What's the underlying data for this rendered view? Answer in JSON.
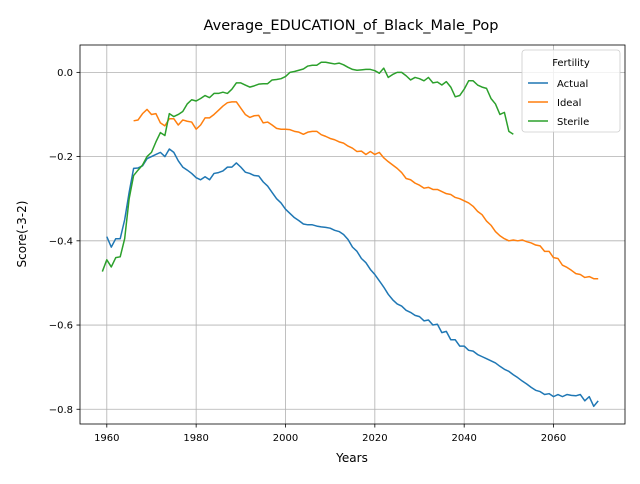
{
  "chart_data": {
    "type": "line",
    "title": "Average_EDUCATION_of_Black_Male_Pop",
    "xlabel": "Years",
    "ylabel": "Score(-3-2)",
    "xlim": [
      1954,
      2076
    ],
    "ylim": [
      -0.835,
      0.065
    ],
    "xticks": [
      1960,
      1980,
      2000,
      2020,
      2040,
      2060
    ],
    "yticks": [
      0.0,
      -0.2,
      -0.4,
      -0.6,
      -0.8
    ],
    "ytick_labels": [
      "0.0",
      "−0.2",
      "−0.4",
      "−0.6",
      "−0.8"
    ],
    "grid": true,
    "legend": {
      "title": "Fertility",
      "placement": "upper right"
    },
    "series": [
      {
        "name": "Actual",
        "color": "#1f77b4",
        "points": [
          [
            1960,
            -0.39
          ],
          [
            1961,
            -0.415
          ],
          [
            1962,
            -0.395
          ],
          [
            1963,
            -0.395
          ],
          [
            1964,
            -0.35
          ],
          [
            1965,
            -0.285
          ],
          [
            1966,
            -0.228
          ],
          [
            1967,
            -0.227
          ],
          [
            1968,
            -0.222
          ],
          [
            1969,
            -0.205
          ],
          [
            1970,
            -0.2
          ],
          [
            1971,
            -0.195
          ],
          [
            1972,
            -0.19
          ],
          [
            1973,
            -0.2
          ],
          [
            1974,
            -0.182
          ],
          [
            1975,
            -0.19
          ],
          [
            1976,
            -0.21
          ],
          [
            1977,
            -0.225
          ],
          [
            1978,
            -0.232
          ],
          [
            1979,
            -0.24
          ],
          [
            1980,
            -0.25
          ],
          [
            1981,
            -0.255
          ],
          [
            1982,
            -0.248
          ],
          [
            1983,
            -0.255
          ],
          [
            1984,
            -0.24
          ],
          [
            1985,
            -0.238
          ],
          [
            1986,
            -0.234
          ],
          [
            1987,
            -0.225
          ],
          [
            1988,
            -0.225
          ],
          [
            1989,
            -0.215
          ],
          [
            1990,
            -0.225
          ],
          [
            1991,
            -0.237
          ],
          [
            1992,
            -0.24
          ],
          [
            1993,
            -0.245
          ],
          [
            1994,
            -0.246
          ],
          [
            1995,
            -0.26
          ],
          [
            1996,
            -0.27
          ],
          [
            1997,
            -0.285
          ],
          [
            1998,
            -0.3
          ],
          [
            1999,
            -0.31
          ],
          [
            2000,
            -0.325
          ],
          [
            2001,
            -0.335
          ],
          [
            2002,
            -0.345
          ],
          [
            2003,
            -0.352
          ],
          [
            2004,
            -0.36
          ],
          [
            2005,
            -0.362
          ],
          [
            2006,
            -0.362
          ],
          [
            2007,
            -0.365
          ],
          [
            2008,
            -0.367
          ],
          [
            2009,
            -0.368
          ],
          [
            2010,
            -0.37
          ],
          [
            2011,
            -0.375
          ],
          [
            2012,
            -0.378
          ],
          [
            2013,
            -0.385
          ],
          [
            2014,
            -0.397
          ],
          [
            2015,
            -0.415
          ],
          [
            2016,
            -0.425
          ],
          [
            2017,
            -0.442
          ],
          [
            2018,
            -0.452
          ],
          [
            2019,
            -0.468
          ],
          [
            2020,
            -0.48
          ],
          [
            2021,
            -0.495
          ],
          [
            2022,
            -0.51
          ],
          [
            2023,
            -0.527
          ],
          [
            2024,
            -0.54
          ],
          [
            2025,
            -0.55
          ],
          [
            2026,
            -0.555
          ],
          [
            2027,
            -0.565
          ],
          [
            2028,
            -0.57
          ],
          [
            2029,
            -0.577
          ],
          [
            2030,
            -0.58
          ],
          [
            2031,
            -0.59
          ],
          [
            2032,
            -0.588
          ],
          [
            2033,
            -0.6
          ],
          [
            2034,
            -0.598
          ],
          [
            2035,
            -0.618
          ],
          [
            2036,
            -0.615
          ],
          [
            2037,
            -0.635
          ],
          [
            2038,
            -0.635
          ],
          [
            2039,
            -0.65
          ],
          [
            2040,
            -0.65
          ],
          [
            2041,
            -0.66
          ],
          [
            2042,
            -0.662
          ],
          [
            2043,
            -0.67
          ],
          [
            2044,
            -0.675
          ],
          [
            2045,
            -0.68
          ],
          [
            2046,
            -0.685
          ],
          [
            2047,
            -0.69
          ],
          [
            2048,
            -0.698
          ],
          [
            2049,
            -0.705
          ],
          [
            2050,
            -0.71
          ],
          [
            2051,
            -0.718
          ],
          [
            2052,
            -0.725
          ],
          [
            2053,
            -0.733
          ],
          [
            2054,
            -0.74
          ],
          [
            2055,
            -0.748
          ],
          [
            2056,
            -0.755
          ],
          [
            2057,
            -0.758
          ],
          [
            2058,
            -0.765
          ],
          [
            2059,
            -0.763
          ],
          [
            2060,
            -0.77
          ],
          [
            2061,
            -0.765
          ],
          [
            2062,
            -0.77
          ],
          [
            2063,
            -0.765
          ],
          [
            2064,
            -0.767
          ],
          [
            2065,
            -0.768
          ],
          [
            2066,
            -0.765
          ],
          [
            2067,
            -0.78
          ],
          [
            2068,
            -0.77
          ],
          [
            2069,
            -0.793
          ],
          [
            2070,
            -0.78
          ]
        ]
      },
      {
        "name": "Ideal",
        "color": "#ff7f0e",
        "points": [
          [
            1966,
            -0.115
          ],
          [
            1967,
            -0.113
          ],
          [
            1968,
            -0.098
          ],
          [
            1969,
            -0.088
          ],
          [
            1970,
            -0.1
          ],
          [
            1971,
            -0.098
          ],
          [
            1972,
            -0.12
          ],
          [
            1973,
            -0.127
          ],
          [
            1974,
            -0.11
          ],
          [
            1975,
            -0.11
          ],
          [
            1976,
            -0.125
          ],
          [
            1977,
            -0.113
          ],
          [
            1978,
            -0.116
          ],
          [
            1979,
            -0.118
          ],
          [
            1980,
            -0.135
          ],
          [
            1981,
            -0.125
          ],
          [
            1982,
            -0.108
          ],
          [
            1983,
            -0.108
          ],
          [
            1984,
            -0.1
          ],
          [
            1985,
            -0.09
          ],
          [
            1986,
            -0.08
          ],
          [
            1987,
            -0.072
          ],
          [
            1988,
            -0.07
          ],
          [
            1989,
            -0.07
          ],
          [
            1990,
            -0.085
          ],
          [
            1991,
            -0.1
          ],
          [
            1992,
            -0.107
          ],
          [
            1993,
            -0.103
          ],
          [
            1994,
            -0.102
          ],
          [
            1995,
            -0.12
          ],
          [
            1996,
            -0.118
          ],
          [
            1997,
            -0.125
          ],
          [
            1998,
            -0.133
          ],
          [
            1999,
            -0.135
          ],
          [
            2000,
            -0.135
          ],
          [
            2001,
            -0.136
          ],
          [
            2002,
            -0.14
          ],
          [
            2003,
            -0.142
          ],
          [
            2004,
            -0.147
          ],
          [
            2005,
            -0.142
          ],
          [
            2006,
            -0.14
          ],
          [
            2007,
            -0.14
          ],
          [
            2008,
            -0.148
          ],
          [
            2009,
            -0.152
          ],
          [
            2010,
            -0.157
          ],
          [
            2011,
            -0.16
          ],
          [
            2012,
            -0.165
          ],
          [
            2013,
            -0.168
          ],
          [
            2014,
            -0.175
          ],
          [
            2015,
            -0.18
          ],
          [
            2016,
            -0.188
          ],
          [
            2017,
            -0.187
          ],
          [
            2018,
            -0.195
          ],
          [
            2019,
            -0.188
          ],
          [
            2020,
            -0.195
          ],
          [
            2021,
            -0.19
          ],
          [
            2022,
            -0.203
          ],
          [
            2023,
            -0.212
          ],
          [
            2024,
            -0.22
          ],
          [
            2025,
            -0.228
          ],
          [
            2026,
            -0.238
          ],
          [
            2027,
            -0.252
          ],
          [
            2028,
            -0.255
          ],
          [
            2029,
            -0.263
          ],
          [
            2030,
            -0.268
          ],
          [
            2031,
            -0.275
          ],
          [
            2032,
            -0.273
          ],
          [
            2033,
            -0.278
          ],
          [
            2034,
            -0.278
          ],
          [
            2035,
            -0.283
          ],
          [
            2036,
            -0.288
          ],
          [
            2037,
            -0.29
          ],
          [
            2038,
            -0.297
          ],
          [
            2039,
            -0.3
          ],
          [
            2040,
            -0.305
          ],
          [
            2041,
            -0.31
          ],
          [
            2042,
            -0.318
          ],
          [
            2043,
            -0.33
          ],
          [
            2044,
            -0.338
          ],
          [
            2045,
            -0.353
          ],
          [
            2046,
            -0.363
          ],
          [
            2047,
            -0.378
          ],
          [
            2048,
            -0.388
          ],
          [
            2049,
            -0.395
          ],
          [
            2050,
            -0.4
          ],
          [
            2051,
            -0.398
          ],
          [
            2052,
            -0.4
          ],
          [
            2053,
            -0.398
          ],
          [
            2054,
            -0.402
          ],
          [
            2055,
            -0.405
          ],
          [
            2056,
            -0.41
          ],
          [
            2057,
            -0.412
          ],
          [
            2058,
            -0.425
          ],
          [
            2059,
            -0.425
          ],
          [
            2060,
            -0.44
          ],
          [
            2061,
            -0.442
          ],
          [
            2062,
            -0.458
          ],
          [
            2063,
            -0.463
          ],
          [
            2064,
            -0.47
          ],
          [
            2065,
            -0.478
          ],
          [
            2066,
            -0.48
          ],
          [
            2067,
            -0.487
          ],
          [
            2068,
            -0.485
          ],
          [
            2069,
            -0.49
          ],
          [
            2070,
            -0.49
          ]
        ]
      },
      {
        "name": "Sterile",
        "color": "#2ca02c",
        "points": [
          [
            1959,
            -0.473
          ],
          [
            1960,
            -0.445
          ],
          [
            1961,
            -0.462
          ],
          [
            1962,
            -0.44
          ],
          [
            1963,
            -0.438
          ],
          [
            1964,
            -0.395
          ],
          [
            1965,
            -0.3
          ],
          [
            1966,
            -0.245
          ],
          [
            1967,
            -0.232
          ],
          [
            1968,
            -0.22
          ],
          [
            1969,
            -0.2
          ],
          [
            1970,
            -0.19
          ],
          [
            1971,
            -0.165
          ],
          [
            1972,
            -0.143
          ],
          [
            1973,
            -0.15
          ],
          [
            1974,
            -0.098
          ],
          [
            1975,
            -0.105
          ],
          [
            1976,
            -0.1
          ],
          [
            1977,
            -0.093
          ],
          [
            1978,
            -0.075
          ],
          [
            1979,
            -0.065
          ],
          [
            1980,
            -0.068
          ],
          [
            1981,
            -0.062
          ],
          [
            1982,
            -0.055
          ],
          [
            1983,
            -0.06
          ],
          [
            1984,
            -0.05
          ],
          [
            1985,
            -0.05
          ],
          [
            1986,
            -0.047
          ],
          [
            1987,
            -0.05
          ],
          [
            1988,
            -0.04
          ],
          [
            1989,
            -0.025
          ],
          [
            1990,
            -0.025
          ],
          [
            1991,
            -0.03
          ],
          [
            1992,
            -0.035
          ],
          [
            1993,
            -0.032
          ],
          [
            1994,
            -0.028
          ],
          [
            1995,
            -0.027
          ],
          [
            1996,
            -0.027
          ],
          [
            1997,
            -0.018
          ],
          [
            1998,
            -0.017
          ],
          [
            1999,
            -0.015
          ],
          [
            2000,
            -0.01
          ],
          [
            2001,
            0.0
          ],
          [
            2002,
            0.002
          ],
          [
            2003,
            0.005
          ],
          [
            2004,
            0.008
          ],
          [
            2005,
            0.015
          ],
          [
            2006,
            0.017
          ],
          [
            2007,
            0.017
          ],
          [
            2008,
            0.024
          ],
          [
            2009,
            0.024
          ],
          [
            2010,
            0.022
          ],
          [
            2011,
            0.02
          ],
          [
            2012,
            0.022
          ],
          [
            2013,
            0.018
          ],
          [
            2014,
            0.012
          ],
          [
            2015,
            0.007
          ],
          [
            2016,
            0.005
          ],
          [
            2017,
            0.006
          ],
          [
            2018,
            0.007
          ],
          [
            2019,
            0.007
          ],
          [
            2020,
            0.004
          ],
          [
            2021,
            -0.002
          ],
          [
            2022,
            0.01
          ],
          [
            2023,
            -0.012
          ],
          [
            2024,
            -0.005
          ],
          [
            2025,
            0.0
          ],
          [
            2026,
            0.0
          ],
          [
            2027,
            -0.008
          ],
          [
            2028,
            -0.018
          ],
          [
            2029,
            -0.012
          ],
          [
            2030,
            -0.015
          ],
          [
            2031,
            -0.02
          ],
          [
            2032,
            -0.012
          ],
          [
            2033,
            -0.025
          ],
          [
            2034,
            -0.023
          ],
          [
            2035,
            -0.03
          ],
          [
            2036,
            -0.022
          ],
          [
            2037,
            -0.035
          ],
          [
            2038,
            -0.058
          ],
          [
            2039,
            -0.055
          ],
          [
            2040,
            -0.04
          ],
          [
            2041,
            -0.02
          ],
          [
            2042,
            -0.02
          ],
          [
            2043,
            -0.03
          ],
          [
            2044,
            -0.035
          ],
          [
            2045,
            -0.038
          ],
          [
            2046,
            -0.062
          ],
          [
            2047,
            -0.075
          ],
          [
            2048,
            -0.1
          ],
          [
            2049,
            -0.095
          ],
          [
            2050,
            -0.14
          ],
          [
            2051,
            -0.147
          ]
        ]
      }
    ]
  }
}
